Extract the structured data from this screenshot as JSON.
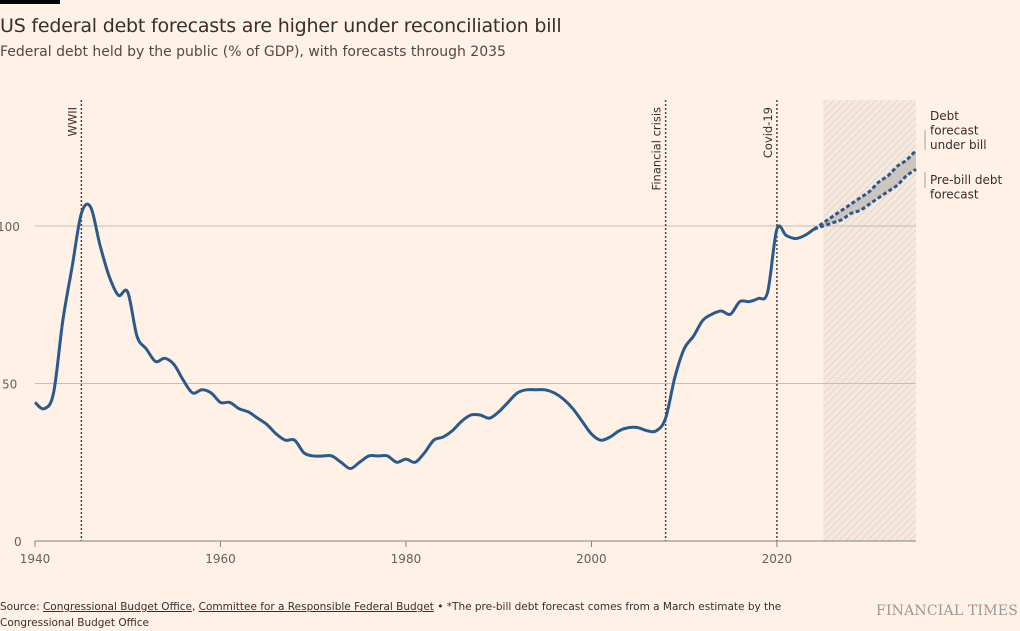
{
  "header": {
    "title": "US federal debt forecasts are higher under reconciliation bill",
    "subtitle": "Federal debt held by the public (% of GDP), with forecasts through 2035"
  },
  "footer": {
    "source_prefix": "Source: ",
    "source_links": [
      "Congressional Budget Office",
      "Committee for a Responsible Federal Budget"
    ],
    "separator": ", ",
    "note": " • *The pre-bill debt forecast comes from a March estimate by the Congressional Budget Office",
    "brand": "FINANCIAL TIMES"
  },
  "colors": {
    "background": "#fff1e5",
    "line": "#2a5a8c",
    "forecast_band": "#c9c2bd",
    "grid": "#c8bcb3",
    "event_line": "#4a4541",
    "forecast_shade": "#e8dcd2"
  },
  "chart_data": {
    "type": "line",
    "title": "US federal debt forecasts are higher under reconciliation bill",
    "subtitle": "Federal debt held by the public (% of GDP), with forecasts through 2035",
    "xlabel": "",
    "ylabel": "",
    "xlim": [
      1940,
      2035
    ],
    "ylim": [
      0,
      140
    ],
    "x_ticks": [
      1940,
      1960,
      1980,
      2000,
      2020
    ],
    "y_ticks": [
      0,
      50,
      100
    ],
    "grid": "horizontal",
    "forecast_period": [
      2025,
      2035
    ],
    "events": [
      {
        "label": "WWII",
        "year": 1945
      },
      {
        "label": "Financial crisis",
        "year": 2008
      },
      {
        "label": "Covid-19",
        "year": 2020
      }
    ],
    "series": [
      {
        "name": "Federal debt held by the public (historical)",
        "style": "solid",
        "x": [
          1940,
          1941,
          1942,
          1943,
          1944,
          1945,
          1946,
          1947,
          1948,
          1949,
          1950,
          1951,
          1952,
          1953,
          1954,
          1955,
          1956,
          1957,
          1958,
          1959,
          1960,
          1961,
          1962,
          1963,
          1964,
          1965,
          1966,
          1967,
          1968,
          1969,
          1970,
          1971,
          1972,
          1973,
          1974,
          1975,
          1976,
          1977,
          1978,
          1979,
          1980,
          1981,
          1982,
          1983,
          1984,
          1985,
          1986,
          1987,
          1988,
          1989,
          1990,
          1991,
          1992,
          1993,
          1994,
          1995,
          1996,
          1997,
          1998,
          1999,
          2000,
          2001,
          2002,
          2003,
          2004,
          2005,
          2006,
          2007,
          2008,
          2009,
          2010,
          2011,
          2012,
          2013,
          2014,
          2015,
          2016,
          2017,
          2018,
          2019,
          2020,
          2021,
          2022,
          2023,
          2024
        ],
        "values": [
          44,
          42,
          47,
          70,
          87,
          104,
          106,
          94,
          84,
          78,
          79,
          65,
          61,
          57,
          58,
          56,
          51,
          47,
          48,
          47,
          44,
          44,
          42,
          41,
          39,
          37,
          34,
          32,
          32,
          28,
          27,
          27,
          27,
          25,
          23,
          25,
          27,
          27,
          27,
          25,
          26,
          25,
          28,
          32,
          33,
          35,
          38,
          40,
          40,
          39,
          41,
          44,
          47,
          48,
          48,
          48,
          47,
          45,
          42,
          38,
          34,
          32,
          33,
          35,
          36,
          36,
          35,
          35,
          39,
          52,
          61,
          65,
          70,
          72,
          73,
          72,
          76,
          76,
          77,
          79,
          99,
          97,
          96,
          97,
          99
        ]
      },
      {
        "name": "Debt forecast under bill",
        "style": "dashed",
        "x": [
          2024,
          2025,
          2026,
          2027,
          2028,
          2029,
          2030,
          2031,
          2032,
          2033,
          2034,
          2035
        ],
        "values": [
          99,
          101,
          103,
          105,
          107,
          109,
          111,
          114,
          116,
          119,
          121,
          124
        ]
      },
      {
        "name": "Pre-bill debt forecast",
        "style": "dashed",
        "x": [
          2024,
          2025,
          2026,
          2027,
          2028,
          2029,
          2030,
          2031,
          2032,
          2033,
          2034,
          2035
        ],
        "values": [
          99,
          100,
          101,
          102,
          104,
          105,
          107,
          109,
          111,
          113,
          116,
          118
        ]
      }
    ],
    "legend": [
      {
        "label": [
          "Debt",
          "forecast",
          "under bill"
        ],
        "placement": "right"
      },
      {
        "label": [
          "Pre-bill debt",
          "forecast"
        ],
        "placement": "right"
      }
    ]
  }
}
